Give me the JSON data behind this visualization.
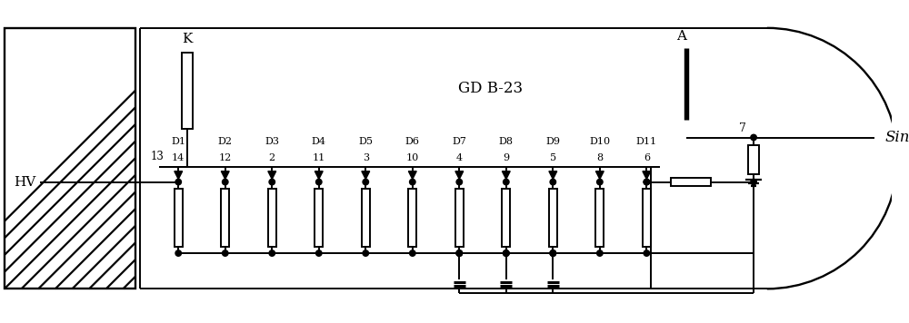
{
  "title": "GD B-23",
  "hv_label": "HV",
  "sin_label": "Sin",
  "k_label": "K",
  "a_label": "A",
  "node7_label": "7",
  "dynode_labels": [
    "D1",
    "D2",
    "D3",
    "D4",
    "D5",
    "D6",
    "D7",
    "D8",
    "D9",
    "D10",
    "D11"
  ],
  "dynode_pin_labels": [
    "14",
    "12",
    "2",
    "11",
    "3",
    "10",
    "4",
    "9",
    "5",
    "8",
    "6"
  ],
  "pin13_label": "13",
  "bg_color": "white",
  "line_color": "black",
  "lw": 1.4
}
